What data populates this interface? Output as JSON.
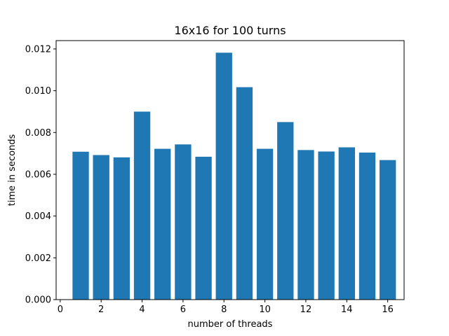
{
  "chart_data": {
    "type": "bar",
    "title": "16x16 for 100 turns",
    "xlabel": "number of threads",
    "ylabel": "time in seconds",
    "categories": [
      1,
      2,
      3,
      4,
      5,
      6,
      7,
      8,
      9,
      10,
      11,
      12,
      13,
      14,
      15,
      16
    ],
    "values": [
      0.00708,
      0.00692,
      0.00681,
      0.009,
      0.00722,
      0.00743,
      0.00684,
      0.01182,
      0.01017,
      0.00722,
      0.0085,
      0.00716,
      0.00709,
      0.00729,
      0.00704,
      0.00668
    ],
    "xlim": [
      -0.2,
      16.8
    ],
    "ylim": [
      0,
      0.0124
    ],
    "xticks": [
      0,
      2,
      4,
      6,
      8,
      10,
      12,
      14,
      16
    ],
    "yticks": [
      0.0,
      0.002,
      0.004,
      0.006,
      0.008,
      0.01,
      0.012
    ],
    "ytick_labels": [
      "0.000",
      "0.002",
      "0.004",
      "0.006",
      "0.008",
      "0.010",
      "0.012"
    ],
    "bar_color": "#1f77b4",
    "grid": false,
    "legend": "none"
  }
}
